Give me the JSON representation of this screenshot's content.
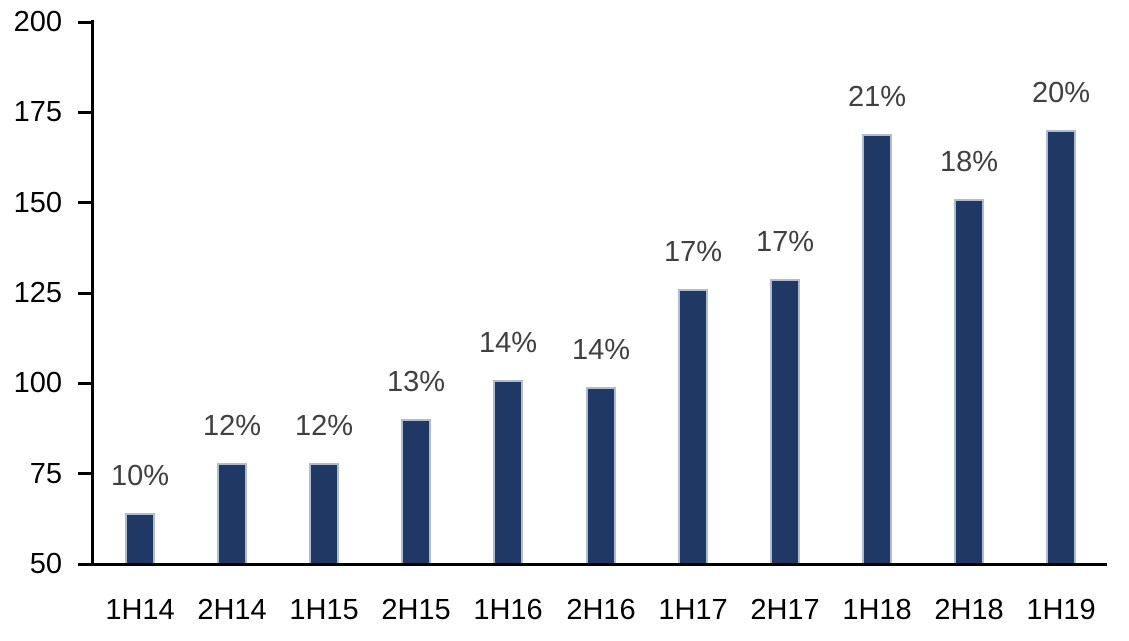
{
  "chart_data": {
    "type": "bar",
    "title": "",
    "xlabel": "",
    "ylabel": "",
    "categories": [
      "1H14",
      "2H14",
      "1H15",
      "2H15",
      "1H16",
      "2H16",
      "1H17",
      "2H17",
      "1H18",
      "2H18",
      "1H19"
    ],
    "series": [
      {
        "name": "value",
        "values": [
          64,
          78,
          78,
          90,
          101,
          99,
          126,
          129,
          169,
          151,
          170
        ]
      }
    ],
    "bar_labels": [
      "10%",
      "12%",
      "12%",
      "13%",
      "14%",
      "14%",
      "17%",
      "17%",
      "21%",
      "18%",
      "20%"
    ],
    "ylim": [
      50,
      200
    ],
    "yticks": [
      50,
      75,
      100,
      125,
      150,
      175,
      200
    ],
    "ytick_step": 25,
    "grid": false,
    "legend_position": "none",
    "colors": {
      "bar_fill": "#1F3864",
      "bar_border": "#AFBCD0",
      "data_label": "#404040",
      "axis_label": "#000000",
      "axis_line": "#000000",
      "background": "#FFFFFF"
    }
  }
}
